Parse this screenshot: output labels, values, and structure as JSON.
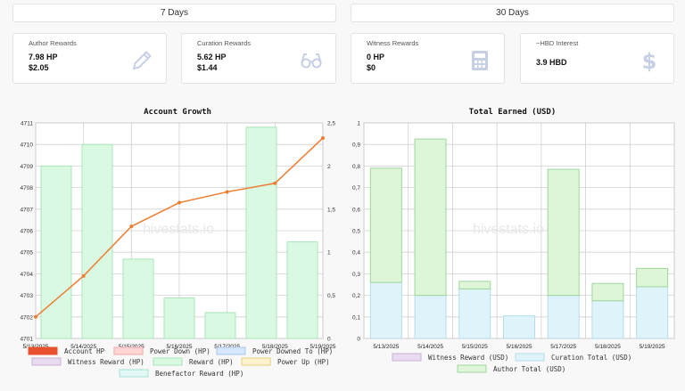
{
  "periods": [
    "7 Days",
    "30 Days"
  ],
  "cards": [
    {
      "label": "Author Rewards",
      "v1": "7.98 HP",
      "v2": "$2.05",
      "icon": "pencil-icon"
    },
    {
      "label": "Curation Rewards",
      "v1": "5.62 HP",
      "v2": "$1.44",
      "icon": "glasses-icon"
    },
    {
      "label": "Witness Rewards",
      "v1": "0 HP",
      "v2": "$0",
      "icon": "calculator-icon"
    },
    {
      "label": "~HBD Interest",
      "v1": "3.9 HBD",
      "v2": "",
      "icon": "dollar-icon"
    }
  ],
  "colors": {
    "line": "#ed7d31",
    "reward_fill": "#d9f9e2",
    "reward_stroke": "#a8e6b8",
    "curation_fill": "#dff3fa",
    "curation_stroke": "#b6dcea",
    "author_fill": "#dff5d8",
    "author_stroke": "#9cd89c",
    "legend_account": "#e8512d",
    "legend_powerdown": "#ffd6d6",
    "legend_powerdowned": "#d6e8ff",
    "legend_witness": "#eadcf0",
    "legend_powerup": "#fdf3cf",
    "legend_benefactor": "#e1f7f3"
  },
  "watermark": "hivestats.io",
  "chart_data": [
    {
      "type": "bar",
      "title": "Account Growth",
      "categories": [
        "5/13/2025",
        "5/14/2025",
        "5/15/2025",
        "5/16/2025",
        "5/17/2025",
        "5/18/2025",
        "5/19/2025"
      ],
      "y_left": {
        "range": [
          4701,
          4711
        ],
        "ticks": [
          "4701",
          "4702",
          "4703",
          "4704",
          "4705",
          "4706",
          "4707",
          "4708",
          "4709",
          "4710",
          "4711"
        ]
      },
      "y_right": {
        "range": [
          0,
          2.5
        ],
        "ticks": [
          "0",
          "0,5",
          "1",
          "1,5",
          "2",
          "2,5"
        ]
      },
      "series": [
        {
          "name": "Account HP",
          "kind": "line",
          "axis": "left",
          "values": [
            4702.0,
            4703.9,
            4706.2,
            4707.3,
            4707.8,
            4708.2,
            4710.3
          ]
        },
        {
          "name": "Reward (HP)",
          "kind": "bar",
          "axis": "right",
          "values": [
            2.0,
            2.25,
            0.92,
            0.47,
            0.3,
            2.45,
            1.12
          ]
        }
      ],
      "legend": [
        "Account HP",
        "Power Down (HP)",
        "Power Downed To (HP)",
        "Witness Reward (HP)",
        "Reward (HP)",
        "Power Up (HP)",
        "Benefactor Reward (HP)"
      ],
      "grid": true,
      "legend_position": "bottom"
    },
    {
      "type": "bar",
      "title": "Total Earned (USD)",
      "stacked": true,
      "categories": [
        "5/13/2025",
        "5/14/2025",
        "5/15/2025",
        "5/16/2025",
        "5/17/2025",
        "5/18/2025",
        "5/19/2025"
      ],
      "y": {
        "range": [
          0,
          1
        ],
        "ticks": [
          "0",
          "0,1",
          "0,2",
          "0,3",
          "0,4",
          "0,5",
          "0,6",
          "0,7",
          "0,8",
          "0,9",
          "1"
        ]
      },
      "series": [
        {
          "name": "Curation Total (USD)",
          "values": [
            0.26,
            0.2,
            0.23,
            0.105,
            0.2,
            0.175,
            0.24
          ]
        },
        {
          "name": "Author Total (USD)",
          "values": [
            0.53,
            0.725,
            0.035,
            0.0,
            0.585,
            0.08,
            0.085
          ]
        }
      ],
      "legend": [
        "Witness Reward (USD)",
        "Curation Total (USD)",
        "Author Total (USD)"
      ],
      "grid": true,
      "legend_position": "bottom"
    }
  ]
}
